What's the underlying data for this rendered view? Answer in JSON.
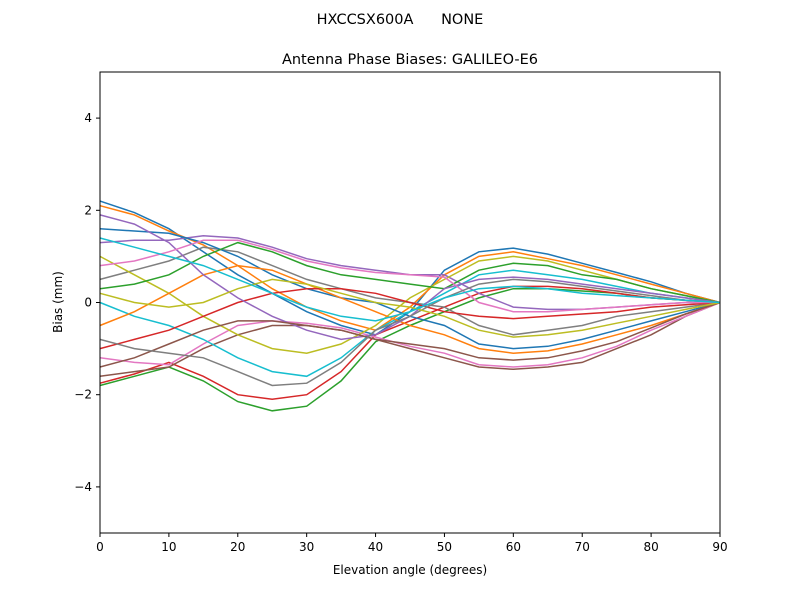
{
  "chart_data": {
    "type": "line",
    "suptitle": "HXCCSX600A      NONE",
    "title": "Antenna Phase Biases: GALILEO-E6",
    "xlabel": "Elevation angle (degrees)",
    "ylabel": "Bias (mm)",
    "xlim": [
      0,
      90
    ],
    "ylim": [
      -5,
      5
    ],
    "xticks": [
      0,
      10,
      20,
      30,
      40,
      50,
      60,
      70,
      80,
      90
    ],
    "yticks": [
      -4,
      -2,
      0,
      2,
      4
    ],
    "ytick_labels": [
      "−4",
      "−2",
      "0",
      "2",
      "4"
    ],
    "grid": false,
    "colors": [
      "#1f77b4",
      "#ff7f0e",
      "#2ca02c",
      "#d62728",
      "#9467bd",
      "#8c564b",
      "#e377c2",
      "#7f7f7f",
      "#bcbd22",
      "#17becf"
    ],
    "x": [
      0,
      5,
      10,
      15,
      20,
      25,
      30,
      35,
      40,
      45,
      50,
      55,
      60,
      65,
      70,
      75,
      80,
      85,
      90
    ],
    "series": [
      {
        "values": [
          2.2,
          1.95,
          1.6,
          1.1,
          0.6,
          0.2,
          -0.2,
          -0.5,
          -0.7,
          -0.2,
          0.7,
          1.1,
          1.18,
          1.05,
          0.85,
          0.65,
          0.45,
          0.2,
          0
        ]
      },
      {
        "values": [
          2.1,
          1.9,
          1.55,
          1.25,
          0.8,
          0.3,
          -0.1,
          -0.4,
          -0.6,
          -0.1,
          0.6,
          1.0,
          1.1,
          0.95,
          0.8,
          0.6,
          0.4,
          0.2,
          0
        ]
      },
      {
        "values": [
          -1.8,
          -1.6,
          -1.4,
          -1.7,
          -2.15,
          -2.35,
          -2.25,
          -1.7,
          -0.85,
          -0.5,
          -0.2,
          0.1,
          0.3,
          0.3,
          0.25,
          0.2,
          0.1,
          0.05,
          0
        ]
      },
      {
        "values": [
          -1.75,
          -1.55,
          -1.3,
          -1.6,
          -2.0,
          -2.1,
          -2.0,
          -1.5,
          -0.7,
          -0.4,
          -0.1,
          0.2,
          0.35,
          0.35,
          0.3,
          0.2,
          0.1,
          0.05,
          0
        ]
      },
      {
        "values": [
          1.3,
          1.35,
          1.35,
          1.45,
          1.4,
          1.2,
          0.95,
          0.8,
          0.7,
          0.6,
          0.6,
          0.2,
          -0.1,
          -0.15,
          -0.15,
          -0.1,
          -0.05,
          0,
          0
        ]
      },
      {
        "values": [
          -1.6,
          -1.5,
          -1.4,
          -1.0,
          -0.7,
          -0.5,
          -0.5,
          -0.6,
          -0.8,
          -1.0,
          -1.2,
          -1.4,
          -1.45,
          -1.4,
          -1.3,
          -1.0,
          -0.7,
          -0.3,
          0
        ]
      },
      {
        "values": [
          -1.2,
          -1.3,
          -1.35,
          -0.9,
          -0.5,
          -0.4,
          -0.45,
          -0.55,
          -0.75,
          -0.95,
          -1.1,
          -1.35,
          -1.4,
          -1.35,
          -1.2,
          -0.95,
          -0.6,
          -0.3,
          0
        ]
      },
      {
        "values": [
          0.5,
          0.7,
          0.9,
          1.2,
          1.1,
          0.8,
          0.5,
          0.3,
          0.1,
          0.0,
          -0.1,
          -0.5,
          -0.7,
          -0.6,
          -0.5,
          -0.3,
          -0.2,
          -0.1,
          0
        ]
      },
      {
        "values": [
          1.0,
          0.6,
          0.2,
          -0.3,
          -0.7,
          -1.0,
          -1.1,
          -0.9,
          -0.5,
          0.1,
          0.5,
          0.9,
          1.0,
          0.9,
          0.7,
          0.5,
          0.3,
          0.15,
          0
        ]
      },
      {
        "values": [
          0.0,
          -0.3,
          -0.5,
          -0.8,
          -1.2,
          -1.5,
          -1.6,
          -1.2,
          -0.6,
          -0.2,
          0.2,
          0.6,
          0.7,
          0.6,
          0.5,
          0.35,
          0.2,
          0.1,
          0
        ]
      },
      {
        "values": [
          1.6,
          1.55,
          1.5,
          1.3,
          1.0,
          0.6,
          0.3,
          0.1,
          0.0,
          -0.3,
          -0.5,
          -0.9,
          -1.0,
          -0.95,
          -0.8,
          -0.6,
          -0.4,
          -0.2,
          0
        ]
      },
      {
        "values": [
          -0.5,
          -0.2,
          0.2,
          0.6,
          0.8,
          0.7,
          0.4,
          0.1,
          -0.2,
          -0.5,
          -0.7,
          -1.0,
          -1.1,
          -1.05,
          -0.9,
          -0.7,
          -0.5,
          -0.25,
          0
        ]
      },
      {
        "values": [
          0.3,
          0.4,
          0.6,
          1.0,
          1.3,
          1.1,
          0.8,
          0.6,
          0.5,
          0.4,
          0.3,
          0.7,
          0.85,
          0.8,
          0.6,
          0.5,
          0.3,
          0.15,
          0
        ]
      },
      {
        "values": [
          -1.0,
          -0.8,
          -0.6,
          -0.3,
          0.0,
          0.2,
          0.3,
          0.3,
          0.2,
          0.0,
          -0.2,
          -0.3,
          -0.35,
          -0.3,
          -0.25,
          -0.2,
          -0.1,
          -0.05,
          0
        ]
      },
      {
        "values": [
          1.9,
          1.7,
          1.3,
          0.6,
          0.1,
          -0.3,
          -0.6,
          -0.8,
          -0.7,
          -0.3,
          0.3,
          0.5,
          0.55,
          0.5,
          0.4,
          0.3,
          0.2,
          0.1,
          0
        ]
      },
      {
        "values": [
          -1.4,
          -1.2,
          -0.9,
          -0.6,
          -0.4,
          -0.4,
          -0.5,
          -0.6,
          -0.8,
          -0.9,
          -1.0,
          -1.2,
          -1.25,
          -1.2,
          -1.05,
          -0.85,
          -0.55,
          -0.25,
          0
        ]
      },
      {
        "values": [
          0.8,
          0.9,
          1.1,
          1.35,
          1.35,
          1.15,
          0.9,
          0.75,
          0.65,
          0.6,
          0.55,
          0.0,
          -0.2,
          -0.2,
          -0.15,
          -0.1,
          -0.05,
          0,
          0
        ]
      },
      {
        "values": [
          -0.8,
          -1.0,
          -1.1,
          -1.2,
          -1.5,
          -1.8,
          -1.75,
          -1.3,
          -0.6,
          -0.3,
          0.1,
          0.4,
          0.5,
          0.45,
          0.35,
          0.25,
          0.15,
          0.05,
          0
        ]
      },
      {
        "values": [
          0.2,
          0.0,
          -0.1,
          0.0,
          0.3,
          0.5,
          0.4,
          0.2,
          0.0,
          -0.1,
          -0.3,
          -0.6,
          -0.75,
          -0.7,
          -0.6,
          -0.45,
          -0.3,
          -0.15,
          0
        ]
      },
      {
        "values": [
          1.4,
          1.2,
          1.0,
          0.8,
          0.5,
          0.2,
          -0.1,
          -0.3,
          -0.4,
          -0.2,
          0.1,
          0.3,
          0.35,
          0.3,
          0.2,
          0.15,
          0.1,
          0.05,
          0
        ]
      }
    ]
  }
}
